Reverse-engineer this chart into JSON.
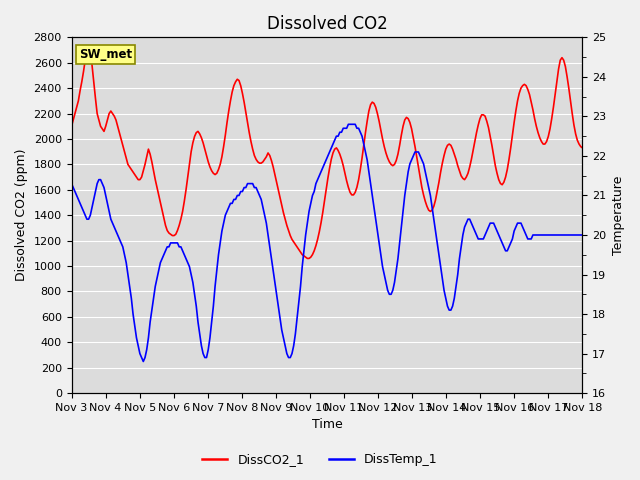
{
  "title": "Dissolved CO2",
  "xlabel": "Time",
  "ylabel_left": "Dissolved CO2 (ppm)",
  "ylabel_right": "Temperature",
  "station_label": "SW_met",
  "ylim_left": [
    0,
    2800
  ],
  "ylim_right": [
    16.0,
    25.0
  ],
  "legend_entries": [
    "DissCO2_1",
    "DissTemp_1"
  ],
  "line_colors": [
    "red",
    "blue"
  ],
  "background_color": "#dcdcdc",
  "fig_facecolor": "#f0f0f0",
  "xtick_labels": [
    "Nov 3",
    "Nov 4",
    "Nov 5",
    "Nov 6",
    "Nov 7",
    "Nov 8",
    "Nov 9",
    "Nov 10",
    "Nov 11",
    "Nov 12",
    "Nov 13",
    "Nov 14",
    "Nov 15",
    "Nov 16",
    "Nov 17",
    "Nov 18"
  ],
  "left_yticks": [
    0,
    200,
    400,
    600,
    800,
    1000,
    1200,
    1400,
    1600,
    1800,
    2000,
    2200,
    2400,
    2600,
    2800
  ],
  "right_yticks": [
    16.0,
    17.0,
    18.0,
    19.0,
    20.0,
    21.0,
    22.0,
    23.0,
    24.0,
    25.0
  ],
  "title_fontsize": 12,
  "label_fontsize": 9,
  "tick_fontsize": 8,
  "legend_fontsize": 9,
  "co2_data": [
    2100,
    2150,
    2200,
    2250,
    2300,
    2380,
    2450,
    2530,
    2620,
    2700,
    2720,
    2680,
    2580,
    2450,
    2320,
    2200,
    2150,
    2100,
    2080,
    2060,
    2100,
    2150,
    2200,
    2220,
    2200,
    2180,
    2150,
    2100,
    2050,
    2000,
    1950,
    1900,
    1850,
    1800,
    1780,
    1760,
    1740,
    1720,
    1700,
    1680,
    1680,
    1700,
    1750,
    1800,
    1860,
    1920,
    1880,
    1820,
    1750,
    1680,
    1620,
    1560,
    1500,
    1440,
    1380,
    1320,
    1280,
    1260,
    1250,
    1240,
    1240,
    1250,
    1280,
    1320,
    1370,
    1430,
    1510,
    1600,
    1700,
    1800,
    1900,
    1970,
    2020,
    2050,
    2060,
    2040,
    2010,
    1970,
    1920,
    1870,
    1820,
    1780,
    1750,
    1730,
    1720,
    1730,
    1760,
    1800,
    1860,
    1940,
    2030,
    2130,
    2220,
    2300,
    2370,
    2420,
    2450,
    2470,
    2460,
    2420,
    2360,
    2290,
    2210,
    2130,
    2050,
    1980,
    1920,
    1870,
    1840,
    1820,
    1810,
    1810,
    1820,
    1840,
    1860,
    1890,
    1870,
    1830,
    1780,
    1720,
    1660,
    1600,
    1540,
    1480,
    1420,
    1370,
    1320,
    1280,
    1240,
    1210,
    1190,
    1170,
    1150,
    1130,
    1110,
    1090,
    1080,
    1070,
    1060,
    1060,
    1070,
    1090,
    1120,
    1160,
    1210,
    1270,
    1340,
    1420,
    1510,
    1600,
    1690,
    1770,
    1840,
    1890,
    1920,
    1930,
    1910,
    1880,
    1840,
    1790,
    1730,
    1670,
    1620,
    1580,
    1560,
    1560,
    1580,
    1620,
    1680,
    1760,
    1850,
    1950,
    2050,
    2140,
    2220,
    2270,
    2290,
    2280,
    2250,
    2200,
    2140,
    2070,
    2000,
    1940,
    1890,
    1850,
    1820,
    1800,
    1790,
    1800,
    1830,
    1880,
    1950,
    2030,
    2100,
    2150,
    2170,
    2160,
    2130,
    2080,
    2010,
    1940,
    1860,
    1780,
    1700,
    1620,
    1560,
    1510,
    1470,
    1440,
    1430,
    1440,
    1470,
    1520,
    1590,
    1660,
    1740,
    1810,
    1870,
    1920,
    1950,
    1960,
    1950,
    1920,
    1880,
    1840,
    1790,
    1750,
    1710,
    1690,
    1680,
    1700,
    1730,
    1780,
    1840,
    1910,
    1980,
    2050,
    2110,
    2160,
    2190,
    2190,
    2180,
    2140,
    2090,
    2020,
    1950,
    1870,
    1790,
    1730,
    1680,
    1650,
    1640,
    1660,
    1700,
    1760,
    1840,
    1930,
    2030,
    2130,
    2220,
    2300,
    2360,
    2400,
    2420,
    2430,
    2420,
    2390,
    2350,
    2290,
    2230,
    2160,
    2100,
    2050,
    2010,
    1980,
    1960,
    1960,
    1980,
    2020,
    2080,
    2160,
    2250,
    2350,
    2450,
    2550,
    2620,
    2640,
    2620,
    2570,
    2490,
    2400,
    2300,
    2200,
    2110,
    2040,
    1990,
    1960,
    1940,
    1930
  ],
  "temp_data": [
    21.3,
    21.2,
    21.1,
    21.0,
    20.9,
    20.8,
    20.7,
    20.6,
    20.5,
    20.4,
    20.4,
    20.5,
    20.7,
    20.9,
    21.1,
    21.3,
    21.4,
    21.4,
    21.3,
    21.2,
    21.0,
    20.8,
    20.6,
    20.4,
    20.3,
    20.2,
    20.1,
    20.0,
    19.9,
    19.8,
    19.7,
    19.5,
    19.3,
    19.0,
    18.7,
    18.4,
    18.0,
    17.7,
    17.4,
    17.2,
    17.0,
    16.9,
    16.8,
    16.9,
    17.1,
    17.4,
    17.8,
    18.1,
    18.4,
    18.7,
    18.9,
    19.1,
    19.3,
    19.4,
    19.5,
    19.6,
    19.7,
    19.7,
    19.8,
    19.8,
    19.8,
    19.8,
    19.8,
    19.7,
    19.7,
    19.6,
    19.5,
    19.4,
    19.3,
    19.2,
    19.0,
    18.8,
    18.5,
    18.2,
    17.8,
    17.5,
    17.2,
    17.0,
    16.9,
    16.9,
    17.1,
    17.4,
    17.8,
    18.2,
    18.7,
    19.1,
    19.5,
    19.8,
    20.1,
    20.3,
    20.5,
    20.6,
    20.7,
    20.8,
    20.8,
    20.9,
    20.9,
    21.0,
    21.0,
    21.1,
    21.1,
    21.2,
    21.2,
    21.3,
    21.3,
    21.3,
    21.3,
    21.2,
    21.2,
    21.1,
    21.0,
    20.9,
    20.7,
    20.5,
    20.3,
    20.0,
    19.7,
    19.4,
    19.1,
    18.8,
    18.5,
    18.2,
    17.9,
    17.6,
    17.4,
    17.2,
    17.0,
    16.9,
    16.9,
    17.0,
    17.2,
    17.5,
    17.9,
    18.3,
    18.7,
    19.2,
    19.6,
    20.0,
    20.3,
    20.6,
    20.8,
    21.0,
    21.1,
    21.3,
    21.4,
    21.5,
    21.6,
    21.7,
    21.8,
    21.9,
    22.0,
    22.1,
    22.2,
    22.3,
    22.4,
    22.5,
    22.5,
    22.6,
    22.6,
    22.7,
    22.7,
    22.7,
    22.8,
    22.8,
    22.8,
    22.8,
    22.8,
    22.7,
    22.7,
    22.6,
    22.5,
    22.3,
    22.1,
    21.9,
    21.6,
    21.3,
    21.0,
    20.7,
    20.4,
    20.1,
    19.8,
    19.5,
    19.2,
    19.0,
    18.8,
    18.6,
    18.5,
    18.5,
    18.6,
    18.8,
    19.1,
    19.4,
    19.8,
    20.2,
    20.6,
    21.0,
    21.3,
    21.6,
    21.8,
    21.9,
    22.0,
    22.1,
    22.1,
    22.1,
    22.0,
    21.9,
    21.8,
    21.6,
    21.4,
    21.2,
    21.0,
    20.7,
    20.4,
    20.1,
    19.8,
    19.5,
    19.2,
    18.9,
    18.6,
    18.4,
    18.2,
    18.1,
    18.1,
    18.2,
    18.4,
    18.7,
    19.0,
    19.4,
    19.7,
    20.0,
    20.2,
    20.3,
    20.4,
    20.4,
    20.3,
    20.2,
    20.1,
    20.0,
    19.9,
    19.9,
    19.9,
    19.9,
    20.0,
    20.1,
    20.2,
    20.3,
    20.3,
    20.3,
    20.2,
    20.1,
    20.0,
    19.9,
    19.8,
    19.7,
    19.6,
    19.6,
    19.7,
    19.8,
    19.9,
    20.1,
    20.2,
    20.3,
    20.3,
    20.3,
    20.2,
    20.1,
    20.0,
    19.9,
    19.9,
    19.9,
    20.0,
    20.0,
    20.0,
    20.0,
    20.0,
    20.0,
    20.0,
    20.0,
    20.0,
    20.0,
    20.0,
    20.0,
    20.0,
    20.0,
    20.0,
    20.0,
    20.0,
    20.0,
    20.0,
    20.0,
    20.0,
    20.0,
    20.0,
    20.0,
    20.0,
    20.0,
    20.0,
    20.0,
    20.0,
    20.0
  ]
}
